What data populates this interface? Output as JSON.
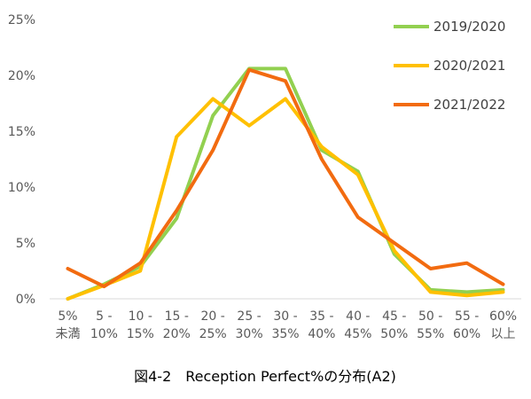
{
  "chart_data": {
    "type": "line",
    "title": "",
    "caption": "図4-2　Reception Perfect%の分布(A2)",
    "xlabel": "",
    "ylabel": "",
    "categories": [
      [
        "5%",
        "未満"
      ],
      [
        "5 -",
        "10%"
      ],
      [
        "10 -",
        "15%"
      ],
      [
        "15 -",
        "20%"
      ],
      [
        "20 -",
        "25%"
      ],
      [
        "25 -",
        "30%"
      ],
      [
        "30 -",
        "35%"
      ],
      [
        "35 -",
        "40%"
      ],
      [
        "40 -",
        "45%"
      ],
      [
        "45 -",
        "50%"
      ],
      [
        "50 -",
        "55%"
      ],
      [
        "55 -",
        "60%"
      ],
      [
        "60%",
        "以上"
      ]
    ],
    "ylim": [
      0,
      25
    ],
    "yticks": [
      0,
      5,
      10,
      15,
      20,
      25
    ],
    "ytick_labels": [
      "0%",
      "5%",
      "10%",
      "15%",
      "20%",
      "25%"
    ],
    "grid": false,
    "legend_position": "top-right",
    "series": [
      {
        "name": "2019/2020",
        "color": "#92D050",
        "values": [
          0,
          1.3,
          2.9,
          7.2,
          16.4,
          20.6,
          20.6,
          13.3,
          11.4,
          4.0,
          0.8,
          0.6,
          0.8
        ]
      },
      {
        "name": "2020/2021",
        "color": "#FFC000",
        "values": [
          0,
          1.2,
          2.5,
          14.5,
          17.9,
          15.5,
          17.9,
          13.6,
          11.1,
          4.3,
          0.6,
          0.3,
          0.6
        ]
      },
      {
        "name": "2021/2022",
        "color": "#F26B10",
        "values": [
          2.7,
          1.1,
          3.2,
          7.9,
          13.3,
          20.5,
          19.5,
          12.5,
          7.3,
          5.0,
          2.7,
          3.2,
          1.3
        ]
      }
    ]
  }
}
